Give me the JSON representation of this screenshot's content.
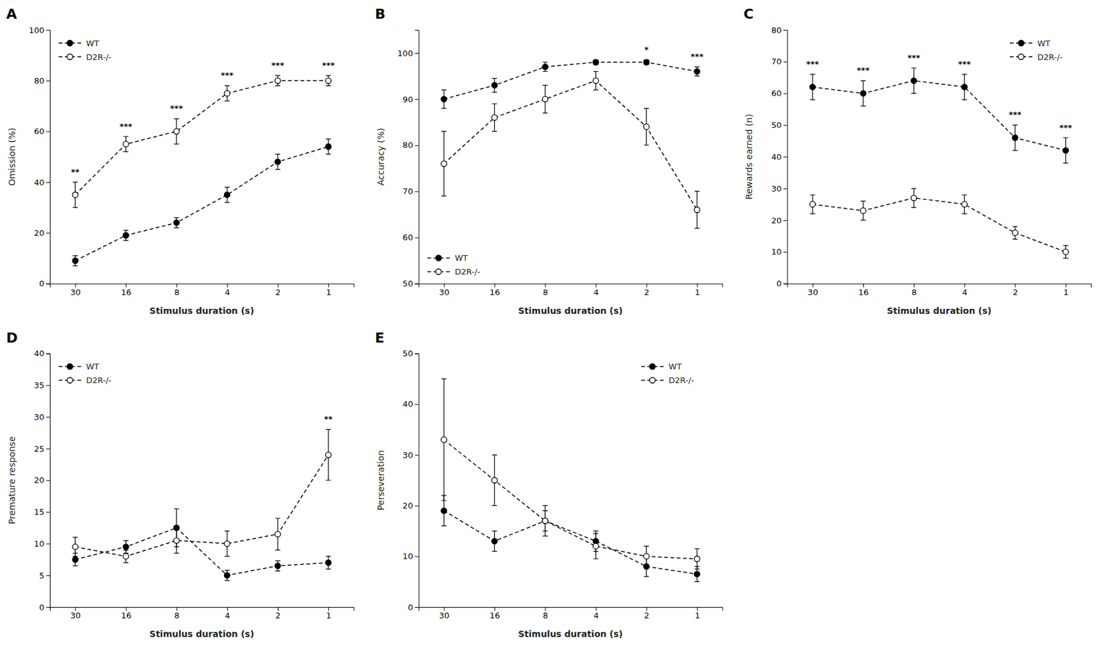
{
  "chart_data": [
    {
      "type": "line",
      "title": "A",
      "categories": [
        "30",
        "16",
        "8",
        "4",
        "2",
        "1"
      ],
      "xlabel": "Stimulus duration (s)",
      "ylabel": "Omission (%)",
      "ylim": [
        0,
        100
      ],
      "yticks": [
        0,
        20,
        40,
        60,
        80,
        100
      ],
      "legend": "upper left",
      "annotations": [
        "**",
        "***",
        "***",
        "***",
        "***",
        "***"
      ],
      "series": [
        {
          "name": "WT",
          "color": "#000000",
          "marker": "circle",
          "line_style": "dashed",
          "values": [
            9,
            19,
            24,
            35,
            48,
            54
          ],
          "errors": [
            2,
            2,
            2,
            3,
            3,
            3
          ]
        },
        {
          "name": "D2R-/-",
          "color": "#000000",
          "marker": "circle-open",
          "line_style": "dashed",
          "values": [
            35,
            55,
            60,
            75,
            80,
            80
          ],
          "errors": [
            5,
            3,
            5,
            3,
            2,
            2
          ]
        }
      ]
    },
    {
      "type": "line",
      "title": "B",
      "categories": [
        "30",
        "16",
        "8",
        "4",
        "2",
        "1"
      ],
      "xlabel": "Stimulus duration (s)",
      "ylabel": "Accuracy (%)",
      "ylim": [
        50,
        105
      ],
      "yticks": [
        50,
        60,
        70,
        80,
        90,
        100
      ],
      "legend": "lower left",
      "annotations": [
        null,
        null,
        null,
        null,
        "*",
        "***"
      ],
      "series": [
        {
          "name": "WT",
          "color": "#000000",
          "marker": "circle",
          "line_style": "dashed",
          "values": [
            90,
            93,
            97,
            98,
            98,
            96
          ],
          "errors": [
            2,
            1.5,
            1,
            0.5,
            0.5,
            1
          ]
        },
        {
          "name": "D2R-/-",
          "color": "#000000",
          "marker": "circle-open",
          "line_style": "dashed",
          "values": [
            76,
            86,
            90,
            94,
            84,
            66
          ],
          "errors": [
            7,
            3,
            3,
            2,
            4,
            4
          ]
        }
      ]
    },
    {
      "type": "line",
      "title": "C",
      "categories": [
        "30",
        "16",
        "8",
        "4",
        "2",
        "1"
      ],
      "xlabel": "Stimulus duration (s)",
      "ylabel": "Rewards earned (n)",
      "ylim": [
        0,
        80
      ],
      "yticks": [
        0,
        10,
        20,
        30,
        40,
        50,
        60,
        70,
        80
      ],
      "legend": "upper right",
      "annotations": [
        "***",
        "***",
        "***",
        "***",
        "***",
        "***"
      ],
      "series": [
        {
          "name": "WT",
          "color": "#000000",
          "marker": "circle",
          "line_style": "dashed",
          "values": [
            62,
            60,
            64,
            62,
            46,
            42
          ],
          "errors": [
            4,
            4,
            4,
            4,
            4,
            4
          ]
        },
        {
          "name": "D2R-/-",
          "color": "#000000",
          "marker": "circle-open",
          "line_style": "dashed",
          "values": [
            25,
            23,
            27,
            25,
            16,
            10
          ],
          "errors": [
            3,
            3,
            3,
            3,
            2,
            2
          ]
        }
      ]
    },
    {
      "type": "line",
      "title": "D",
      "categories": [
        "30",
        "16",
        "8",
        "4",
        "2",
        "1"
      ],
      "xlabel": "Stimulus duration (s)",
      "ylabel": "Premature response",
      "ylim": [
        0,
        40
      ],
      "yticks": [
        0,
        5,
        10,
        15,
        20,
        25,
        30,
        35,
        40
      ],
      "legend": "upper left",
      "annotations": [
        null,
        null,
        null,
        null,
        null,
        "**"
      ],
      "series": [
        {
          "name": "WT",
          "color": "#000000",
          "marker": "circle",
          "line_style": "dashed",
          "values": [
            7.5,
            9.5,
            12.5,
            5,
            6.5,
            7
          ],
          "errors": [
            1,
            1,
            3,
            0.8,
            0.8,
            1
          ]
        },
        {
          "name": "D2R-/-",
          "color": "#000000",
          "marker": "circle-open",
          "line_style": "dashed",
          "values": [
            9.5,
            8,
            10.5,
            10,
            11.5,
            24
          ],
          "errors": [
            1.5,
            1,
            2,
            2,
            2.5,
            4
          ]
        }
      ]
    },
    {
      "type": "line",
      "title": "E",
      "categories": [
        "30",
        "16",
        "8",
        "4",
        "2",
        "1"
      ],
      "xlabel": "Stimulus duration (s)",
      "ylabel": "Perseveration",
      "ylim": [
        0,
        50
      ],
      "yticks": [
        0,
        10,
        20,
        30,
        40,
        50
      ],
      "legend": "upper right",
      "series": [
        {
          "name": "WT",
          "color": "#000000",
          "marker": "circle",
          "line_style": "dashed",
          "values": [
            19,
            13,
            17,
            13,
            8,
            6.5
          ],
          "errors": [
            3,
            2,
            2,
            2,
            2,
            1.5
          ]
        },
        {
          "name": "D2R-/-",
          "color": "#000000",
          "marker": "circle-open",
          "line_style": "dashed",
          "values": [
            33,
            25,
            17,
            12,
            10,
            9.5
          ],
          "errors": [
            12,
            5,
            3,
            2.5,
            2,
            2
          ]
        }
      ]
    }
  ]
}
